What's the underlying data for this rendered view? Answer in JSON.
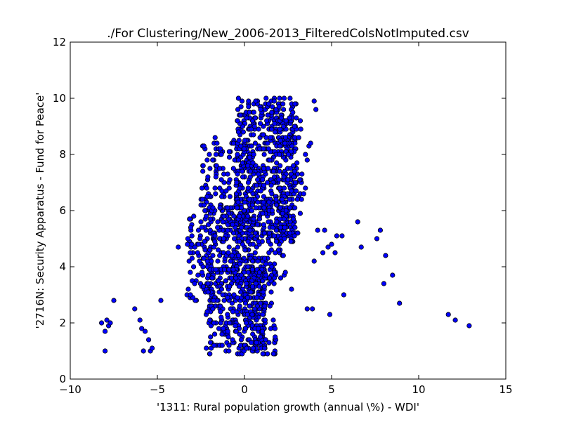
{
  "chart_data": {
    "type": "scatter",
    "title": "./For Clustering/New_2006-2013_FilteredColsNotImputed.csv",
    "xlabel": "'1311: Rural population growth  (annual \\%) - WDI'",
    "ylabel": "'2716N: Security Apparatus - Fund for Peace'",
    "xlim": [
      -10,
      15
    ],
    "ylim": [
      0,
      12
    ],
    "xticks": [
      -10,
      -5,
      0,
      5,
      10,
      15
    ],
    "yticks": [
      0,
      2,
      4,
      6,
      8,
      10,
      12
    ],
    "xtick_labels": [
      "−10",
      "−5",
      "0",
      "5",
      "10",
      "15"
    ],
    "ytick_labels": [
      "0",
      "2",
      "4",
      "6",
      "8",
      "10",
      "12"
    ],
    "grid": false,
    "legend": false,
    "marker_color": "#0000ff",
    "marker_edge": "#000000",
    "sparse_points": [
      [
        -8.2,
        2.0
      ],
      [
        -8.0,
        1.0
      ],
      [
        -7.9,
        2.1
      ],
      [
        -7.8,
        1.9
      ],
      [
        -7.7,
        2.0
      ],
      [
        -7.5,
        2.8
      ],
      [
        -8.0,
        1.7
      ],
      [
        -6.3,
        2.5
      ],
      [
        -6.0,
        2.1
      ],
      [
        -5.9,
        1.8
      ],
      [
        -5.7,
        1.7
      ],
      [
        -5.8,
        1.0
      ],
      [
        -5.4,
        1.0
      ],
      [
        -5.5,
        1.4
      ],
      [
        -5.3,
        1.1
      ],
      [
        -4.8,
        2.8
      ],
      [
        -3.8,
        4.7
      ],
      [
        2.7,
        3.2
      ],
      [
        3.6,
        2.5
      ],
      [
        3.9,
        2.5
      ],
      [
        4.0,
        4.2
      ],
      [
        4.2,
        5.3
      ],
      [
        4.6,
        5.3
      ],
      [
        4.5,
        4.5
      ],
      [
        4.8,
        4.7
      ],
      [
        5.0,
        4.8
      ],
      [
        4.9,
        2.3
      ],
      [
        5.2,
        4.5
      ],
      [
        5.3,
        5.1
      ],
      [
        5.6,
        5.1
      ],
      [
        5.7,
        3.0
      ],
      [
        6.5,
        5.6
      ],
      [
        6.7,
        4.7
      ],
      [
        7.6,
        5.0
      ],
      [
        7.8,
        5.3
      ],
      [
        8.0,
        3.4
      ],
      [
        8.1,
        4.4
      ],
      [
        8.5,
        3.7
      ],
      [
        8.9,
        2.7
      ],
      [
        11.7,
        2.3
      ],
      [
        12.1,
        2.1
      ],
      [
        12.9,
        1.9
      ],
      [
        4.0,
        9.9
      ],
      [
        4.1,
        9.6
      ],
      [
        3.7,
        8.3
      ],
      [
        3.8,
        8.4
      ],
      [
        3.6,
        7.8
      ],
      [
        3.5,
        8.0
      ],
      [
        3.3,
        7.3
      ],
      [
        3.4,
        6.6
      ],
      [
        3.5,
        6.8
      ]
    ],
    "dense_clusters": [
      {
        "name": "core-upper",
        "xmin": -0.5,
        "xmax": 3.0,
        "ymin": 5.0,
        "ymax": 10.0,
        "n": 520
      },
      {
        "name": "core-left-mid",
        "xmin": -2.5,
        "xmax": 0.5,
        "ymin": 4.0,
        "ymax": 8.6,
        "n": 240
      },
      {
        "name": "core-mid",
        "xmin": -1.5,
        "xmax": 2.5,
        "ymin": 3.5,
        "ymax": 6.5,
        "n": 180
      },
      {
        "name": "left-edge",
        "xmin": -3.3,
        "xmax": -1.5,
        "ymin": 2.5,
        "ymax": 6.2,
        "n": 90
      },
      {
        "name": "lower",
        "xmin": -2.2,
        "xmax": 1.2,
        "ymin": 0.9,
        "ymax": 4.0,
        "n": 300
      },
      {
        "name": "lower-right",
        "xmin": 0.0,
        "xmax": 1.8,
        "ymin": 0.9,
        "ymax": 4.3,
        "n": 120
      },
      {
        "name": "right-spread",
        "xmin": 2.0,
        "xmax": 3.3,
        "ymin": 4.8,
        "ymax": 9.6,
        "n": 80
      }
    ]
  }
}
